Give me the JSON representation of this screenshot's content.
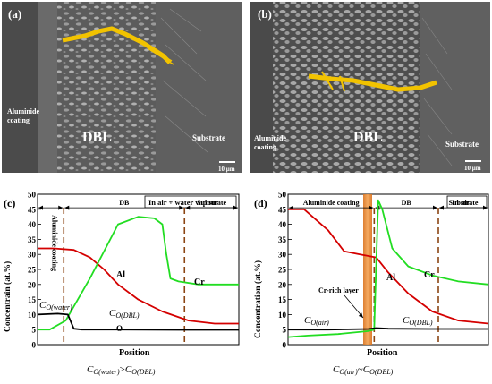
{
  "panels": {
    "a": {
      "letter": "(a)",
      "regions": [
        "Aluminide\ncoating",
        "DBL",
        "Substrate"
      ],
      "scale_bar": "10 µm"
    },
    "b": {
      "letter": "(b)",
      "regions": [
        "Aluminide\ncoating",
        "DBL",
        "Substrate"
      ],
      "scale_bar": "10 µm"
    },
    "c": {
      "letter": "(c)",
      "legend": "In air + water vapour",
      "ylabel": "Concentrain (at.%)",
      "xlabel": "Position",
      "yticks": [
        "0",
        "5",
        "10",
        "15",
        "20",
        "25",
        "30",
        "35",
        "40",
        "45",
        "50"
      ],
      "zone_labels": [
        "Aluminide coating",
        "DB",
        "Substrate"
      ],
      "annotations": [
        "Al",
        "Cr",
        "O",
        "C",
        "O(water)",
        "C",
        "O(DBL)"
      ],
      "caption": "C",
      "caption_sub1": "O(water)",
      "caption_rel": ">C",
      "caption_sub2": "O(DBL)"
    },
    "d": {
      "letter": "(d)",
      "legend": "In air",
      "ylabel": "Concentration (at.%)",
      "xlabel": "Position",
      "yticks": [
        "0",
        "5",
        "10",
        "15",
        "20",
        "25",
        "30",
        "35",
        "40",
        "45",
        "50"
      ],
      "zone_labels": [
        "Aluminide coating",
        "DB",
        "Substrate"
      ],
      "annotations": [
        "Al",
        "Cr",
        "Cr-rich layer",
        "C",
        "O(air)",
        "C",
        "O(DBL)"
      ],
      "caption": "C",
      "caption_sub1": "O(air)",
      "caption_rel": "~C",
      "caption_sub2": "O(DBL)"
    }
  },
  "chart_data": [
    {
      "type": "line",
      "panel": "c",
      "title": "In air + water vapour",
      "xlabel": "Position",
      "ylabel": "Concentrain (at.%)",
      "ylim": [
        0,
        50
      ],
      "x_ticks_shown": false,
      "zones": [
        "Aluminide coating",
        "DB",
        "Substrate"
      ],
      "series": [
        {
          "name": "Al",
          "color": "#d40000",
          "x": [
            0,
            0.08,
            0.18,
            0.26,
            0.33,
            0.4,
            0.5,
            0.62,
            0.75,
            0.88,
            1.0
          ],
          "y": [
            32,
            32,
            31.5,
            29,
            25,
            20,
            15,
            11,
            8,
            7,
            7
          ]
        },
        {
          "name": "Cr",
          "color": "#22dd22",
          "x": [
            0,
            0.06,
            0.14,
            0.26,
            0.4,
            0.5,
            0.58,
            0.62,
            0.64,
            0.66,
            0.7,
            0.8,
            1.0
          ],
          "y": [
            5,
            5,
            8,
            22,
            40,
            42.5,
            42,
            40,
            30,
            22,
            21,
            20,
            20
          ]
        },
        {
          "name": "O",
          "color": "#000000",
          "x": [
            0,
            0.1,
            0.15,
            0.18,
            0.22,
            0.4,
            0.7,
            1.0
          ],
          "y": [
            10,
            10.3,
            10,
            5.3,
            5,
            5,
            4.9,
            4.9
          ]
        }
      ]
    },
    {
      "type": "line",
      "panel": "d",
      "title": "In air",
      "xlabel": "Position",
      "ylabel": "Concentration (at.%)",
      "ylim": [
        0,
        50
      ],
      "x_ticks_shown": false,
      "zones": [
        "Aluminide coating",
        "DB",
        "Substrate"
      ],
      "series": [
        {
          "name": "Al",
          "color": "#d40000",
          "x": [
            0,
            0.08,
            0.2,
            0.28,
            0.36,
            0.44,
            0.5,
            0.6,
            0.72,
            0.85,
            1.0
          ],
          "y": [
            45,
            45,
            38,
            31,
            30,
            29,
            24,
            17,
            11,
            8,
            7
          ]
        },
        {
          "name": "Cr",
          "color": "#22dd22",
          "x": [
            0,
            0.1,
            0.25,
            0.4,
            0.43,
            0.45,
            0.47,
            0.52,
            0.6,
            0.72,
            0.85,
            1.0
          ],
          "y": [
            2.5,
            3,
            3.5,
            4.5,
            5,
            48,
            45,
            32,
            26,
            23,
            21,
            20
          ]
        },
        {
          "name": "O",
          "color": "#000000",
          "x": [
            0,
            0.2,
            0.4,
            0.44,
            0.5,
            0.7,
            1.0
          ],
          "y": [
            5,
            5,
            5.2,
            5.5,
            5.3,
            5.2,
            5.2
          ]
        }
      ]
    }
  ]
}
